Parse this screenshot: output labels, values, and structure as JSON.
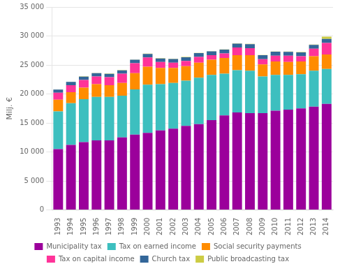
{
  "chart_data": {
    "type": "bar",
    "stacked": true,
    "ylabel": "Milj. €",
    "categories": [
      "1993",
      "1994",
      "1995",
      "1996",
      "1997",
      "1998",
      "1999",
      "2000",
      "2001",
      "2002",
      "2003",
      "2004",
      "2005",
      "2006",
      "2007",
      "2008",
      "2009",
      "2010",
      "2011",
      "2012",
      "2013",
      "2014"
    ],
    "series": [
      {
        "name": "Municipality tax",
        "color": "#9B009B",
        "values": [
          10500,
          11200,
          11700,
          12000,
          12000,
          12500,
          13000,
          13300,
          13700,
          14000,
          14500,
          14800,
          15500,
          16300,
          16800,
          16700,
          16700,
          17100,
          17300,
          17500,
          17800,
          18300
        ]
      },
      {
        "name": "Tax on earned income",
        "color": "#3DBFBF",
        "values": [
          6500,
          7200,
          7400,
          7500,
          7500,
          7200,
          7800,
          8300,
          8000,
          7900,
          7800,
          8000,
          7800,
          7200,
          7300,
          7300,
          6300,
          6200,
          6000,
          5900,
          6200,
          6000
        ]
      },
      {
        "name": "Social security payments",
        "color": "#FF8C00",
        "values": [
          2000,
          1900,
          2000,
          2200,
          2000,
          2200,
          2800,
          3100,
          2800,
          2600,
          2500,
          2600,
          2600,
          2700,
          2600,
          2700,
          2100,
          2300,
          2200,
          2200,
          2500,
          2500
        ]
      },
      {
        "name": "Tax on capital income",
        "color": "#FF3399",
        "values": [
          1200,
          1200,
          1300,
          1300,
          1400,
          1600,
          1700,
          1600,
          1000,
          900,
          900,
          1000,
          800,
          800,
          1300,
          1200,
          900,
          1000,
          1100,
          900,
          1300,
          2000
        ]
      },
      {
        "name": "Church tax",
        "color": "#336699",
        "values": [
          550,
          570,
          580,
          580,
          580,
          580,
          600,
          610,
          620,
          630,
          640,
          640,
          640,
          640,
          680,
          700,
          680,
          680,
          670,
          670,
          680,
          680
        ]
      },
      {
        "name": "Public broadcasting tax",
        "color": "#CCCC44",
        "values": [
          50,
          50,
          50,
          50,
          50,
          50,
          50,
          50,
          50,
          50,
          50,
          50,
          50,
          50,
          50,
          50,
          50,
          50,
          50,
          50,
          50,
          400
        ]
      }
    ],
    "ylim": [
      0,
      35000
    ],
    "yticks": [
      0,
      {
        "value": 5000,
        "label": "5 000"
      },
      {
        "value": 10000,
        "label": "10 000"
      },
      {
        "value": 15000,
        "label": "15 000"
      },
      {
        "value": 20000,
        "label": "20 000"
      },
      {
        "value": 25000,
        "label": "25 000"
      },
      {
        "value": 30000,
        "label": "30 000"
      },
      {
        "value": 35000,
        "label": "35 000"
      }
    ],
    "grid": true,
    "legend": "bottom"
  }
}
